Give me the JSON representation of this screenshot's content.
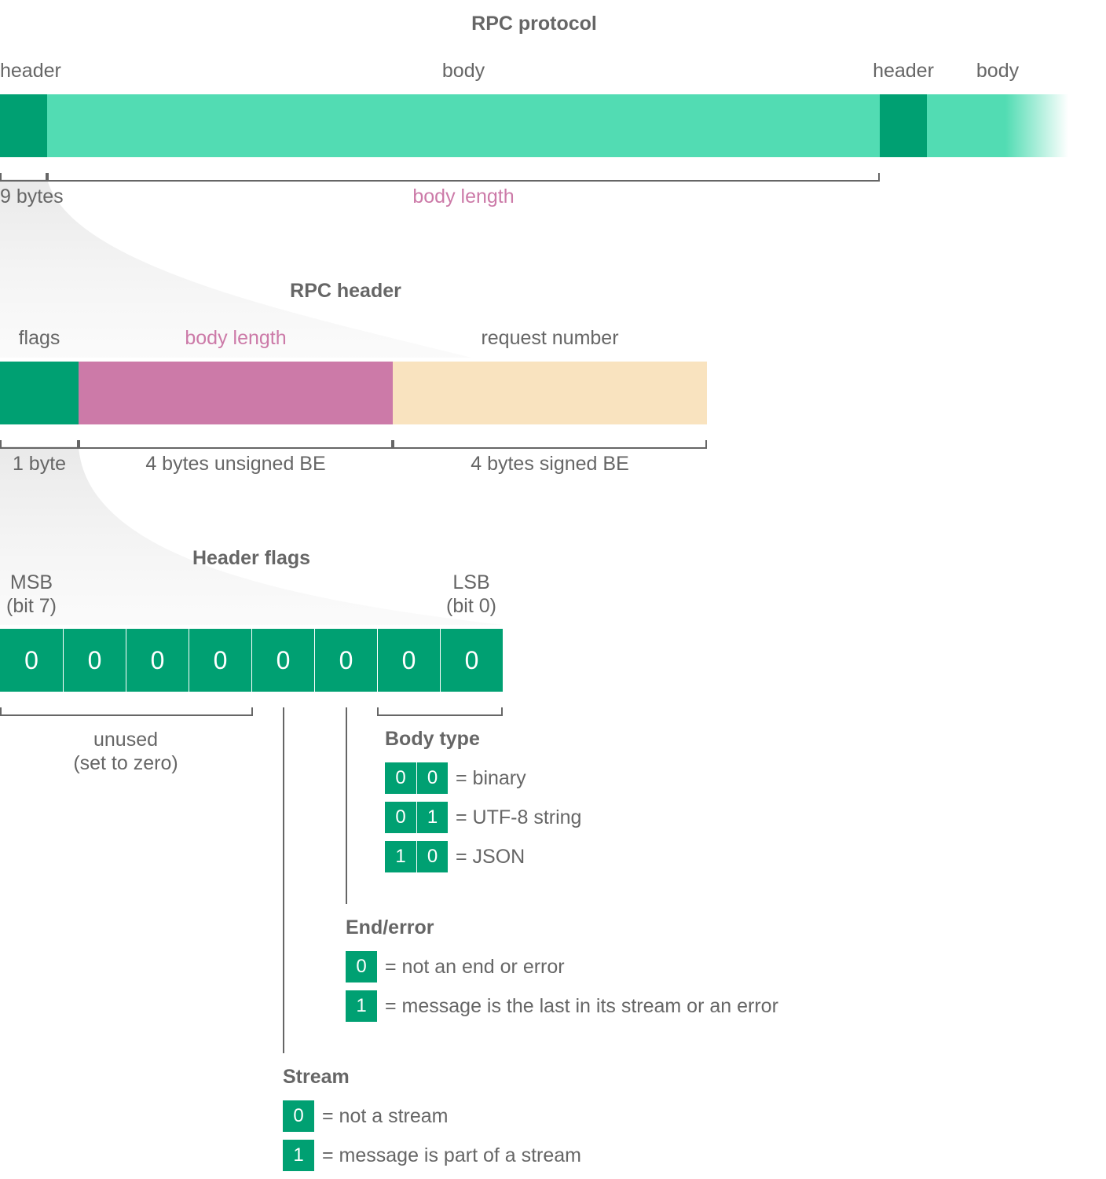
{
  "protocol": {
    "title": "RPC protocol",
    "header_label": "header",
    "body_label": "body",
    "header2_label": "header",
    "body2_label": "body",
    "header_size": "9 bytes",
    "body_size": "body length"
  },
  "rpc_header": {
    "title": "RPC header",
    "flags_label": "flags",
    "body_length_label": "body length",
    "request_number_label": "request number",
    "flags_size": "1 byte",
    "body_length_size": "4 bytes unsigned BE",
    "request_number_size": "4 bytes signed BE"
  },
  "header_flags": {
    "title": "Header flags",
    "msb_line1": "MSB",
    "msb_line2": "(bit 7)",
    "lsb_line1": "LSB",
    "lsb_line2": "(bit 0)",
    "bits": [
      "0",
      "0",
      "0",
      "0",
      "0",
      "0",
      "0",
      "0"
    ],
    "unused_line1": "unused",
    "unused_line2": "(set to zero)"
  },
  "body_type": {
    "title": "Body type",
    "rows": [
      {
        "bits": [
          "0",
          "0"
        ],
        "text": "= binary"
      },
      {
        "bits": [
          "0",
          "1"
        ],
        "text": "= UTF-8 string"
      },
      {
        "bits": [
          "1",
          "0"
        ],
        "text": "= JSON"
      }
    ]
  },
  "end_error": {
    "title": "End/error",
    "rows": [
      {
        "bit": "0",
        "text": "= not an end or error"
      },
      {
        "bit": "1",
        "text": "= message is the last in its stream or an error"
      }
    ]
  },
  "stream": {
    "title": "Stream",
    "rows": [
      {
        "bit": "0",
        "text": "= not a stream"
      },
      {
        "bit": "1",
        "text": "= message is part of a stream"
      }
    ]
  },
  "colors": {
    "dark_green": "#00a072",
    "light_green": "#52dcb3",
    "magenta": "#cc7aa8",
    "cream": "#f9e3bf",
    "text_gray": "#666666"
  }
}
